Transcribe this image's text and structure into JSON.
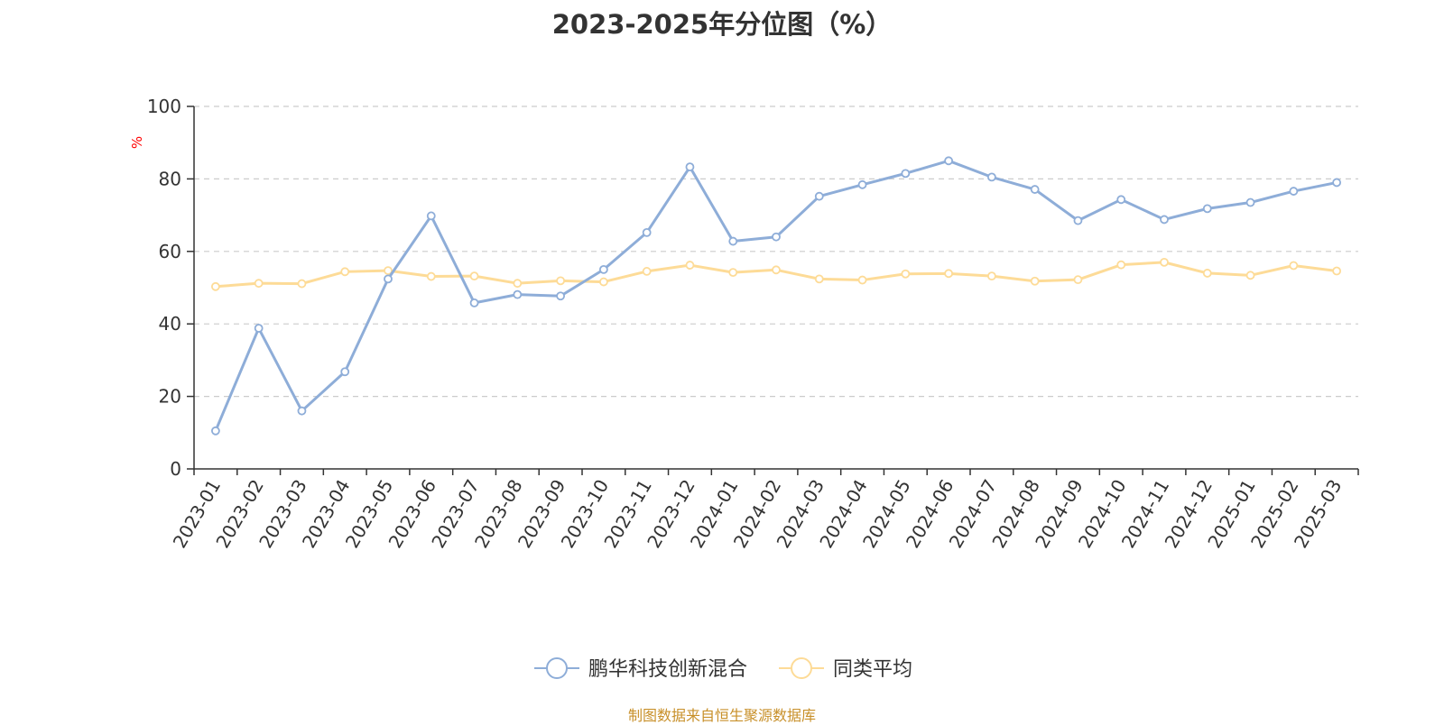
{
  "chart_data": {
    "type": "line",
    "title": "2023-2025年分位图（%）",
    "ylabel": "%",
    "xlabel": "",
    "ylim": [
      0,
      100
    ],
    "yticks": [
      0,
      20,
      40,
      60,
      80,
      100
    ],
    "grid": true,
    "legend_position": "bottom-center",
    "categories": [
      "2023-01",
      "2023-02",
      "2023-03",
      "2023-04",
      "2023-05",
      "2023-06",
      "2023-07",
      "2023-08",
      "2023-09",
      "2023-10",
      "2023-11",
      "2023-12",
      "2024-01",
      "2024-02",
      "2024-03",
      "2024-04",
      "2024-05",
      "2024-06",
      "2024-07",
      "2024-08",
      "2024-09",
      "2024-10",
      "2024-11",
      "2024-12",
      "2025-01",
      "2025-02",
      "2025-03"
    ],
    "series": [
      {
        "name": "鹏华科技创新混合",
        "color": "#8eadd8",
        "values": [
          10.5,
          38.8,
          16,
          26.8,
          52.4,
          69.8,
          45.8,
          48.1,
          47.7,
          55,
          65.2,
          83.3,
          62.8,
          64,
          75.2,
          78.4,
          81.5,
          85,
          80.5,
          77.1,
          68.5,
          74.3,
          68.8,
          71.8,
          73.5,
          76.6,
          79
        ]
      },
      {
        "name": "同类平均",
        "color": "#fddb97",
        "values": [
          50.3,
          51.2,
          51.1,
          54.4,
          54.7,
          53.1,
          53.2,
          51.2,
          51.9,
          51.6,
          54.5,
          56.2,
          54.2,
          54.9,
          52.4,
          52.1,
          53.8,
          53.9,
          53.2,
          51.8,
          52.2,
          56.3,
          57,
          54,
          53.4,
          56.1,
          54.6
        ]
      }
    ]
  },
  "source_note": "制图数据来自恒生聚源数据库"
}
